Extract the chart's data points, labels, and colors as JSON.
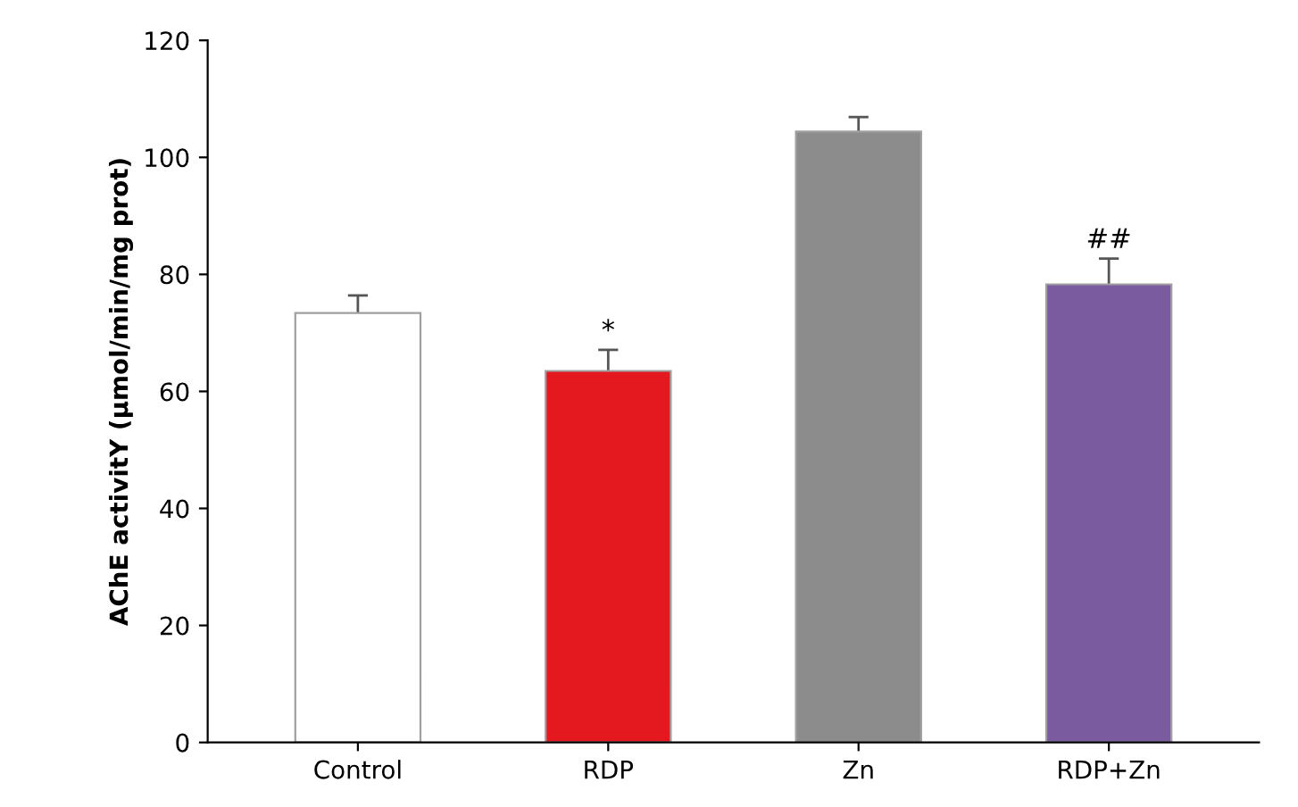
{
  "chart_data": {
    "type": "bar",
    "ylabel": "AChE activitY (µmol/min/mg prot)",
    "categories": [
      "Control",
      "RDP",
      "Zn",
      "RDP+Zn"
    ],
    "values": [
      73.4,
      63.5,
      104.4,
      78.3
    ],
    "colors": [
      "#ffffff",
      "#e3191f",
      "#8c8c8c",
      "#7a5ba0"
    ],
    "errors": [
      3.0,
      3.6,
      2.5,
      4.4
    ],
    "ylim": [
      0,
      120
    ],
    "yticks": [
      0,
      20,
      40,
      60,
      80,
      100,
      120
    ],
    "grid": false,
    "legend": false,
    "annotations": [
      {
        "text": "*",
        "x": "RDP",
        "y": 63.5
      },
      {
        "text": "##",
        "x": "RDP+Zn",
        "y": 78.3
      }
    ]
  }
}
